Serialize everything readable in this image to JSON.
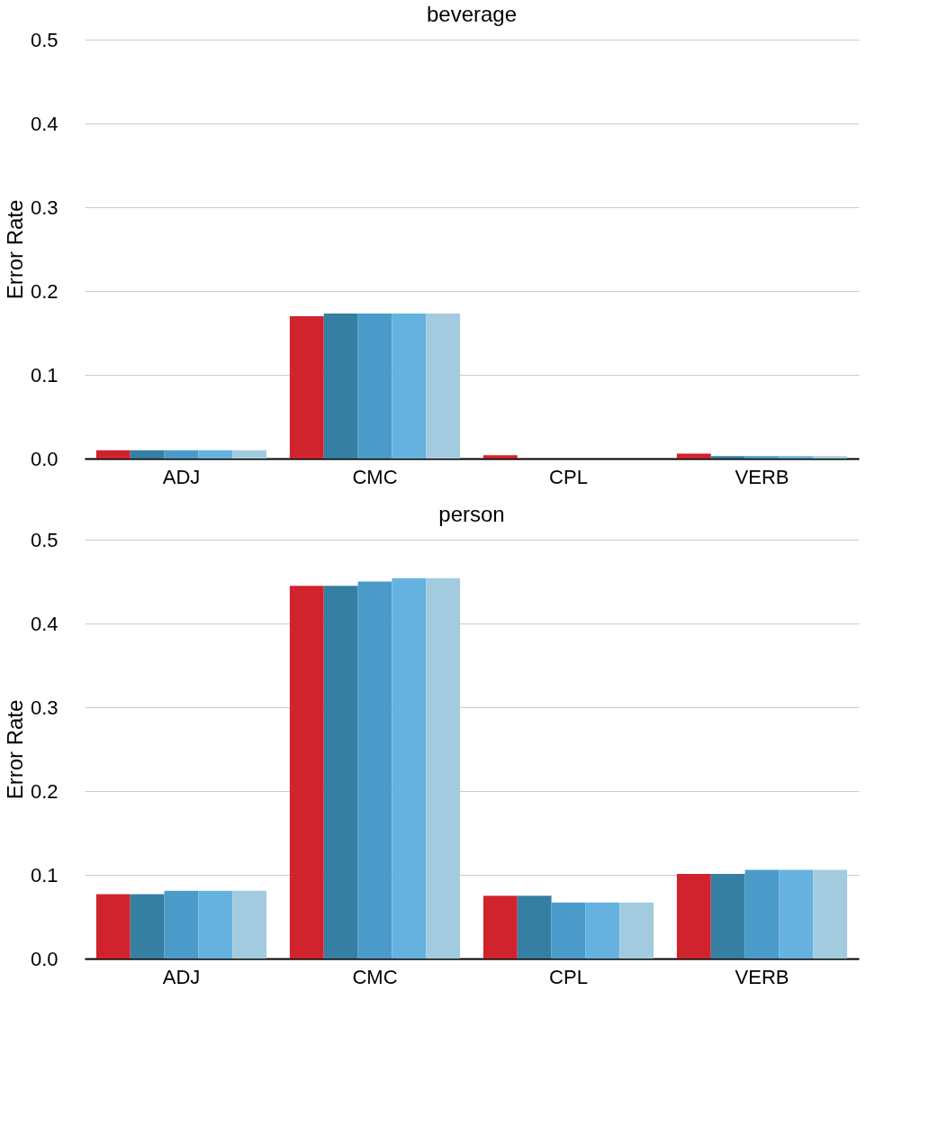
{
  "chart_data": [
    {
      "type": "bar",
      "title": "beverage",
      "ylabel": "Error Rate",
      "categories": [
        "ADJ",
        "CMC",
        "CPL",
        "VERB"
      ],
      "series": [
        {
          "color": "#d0232e",
          "values": [
            0.01,
            0.17,
            0.004,
            0.006
          ]
        },
        {
          "color": "#357fa3",
          "values": [
            0.01,
            0.173,
            0,
            0.003
          ]
        },
        {
          "color": "#4a9bca",
          "values": [
            0.01,
            0.173,
            0,
            0.003
          ]
        },
        {
          "color": "#65b2e0",
          "values": [
            0.01,
            0.173,
            0,
            0.003
          ]
        },
        {
          "color": "#a3cbe0",
          "values": [
            0.01,
            0.173,
            0,
            0.003
          ]
        }
      ],
      "ylim": [
        0,
        0.5
      ],
      "yticks": [
        {
          "value": 0,
          "label": "0.0"
        },
        0.1,
        0.2,
        0.3,
        0.4,
        0.5
      ],
      "grid": "y",
      "legend": false
    },
    {
      "type": "bar",
      "title": "person",
      "ylabel": "Error Rate",
      "categories": [
        "ADJ",
        "CMC",
        "CPL",
        "VERB"
      ],
      "series": [
        {
          "color": "#d0232e",
          "values": [
            0.077,
            0.445,
            0.075,
            0.101
          ]
        },
        {
          "color": "#357fa3",
          "values": [
            0.077,
            0.445,
            0.075,
            0.101
          ]
        },
        {
          "color": "#4a9bca",
          "values": [
            0.081,
            0.45,
            0.067,
            0.106
          ]
        },
        {
          "color": "#65b2e0",
          "values": [
            0.081,
            0.454,
            0.067,
            0.106
          ]
        },
        {
          "color": "#a3cbe0",
          "values": [
            0.081,
            0.454,
            0.067,
            0.106
          ]
        }
      ],
      "ylim": [
        0,
        0.5
      ],
      "yticks": [
        {
          "value": 0,
          "label": "0.0"
        },
        0.1,
        0.2,
        0.3,
        0.4,
        0.5
      ],
      "grid": "y",
      "legend": false
    }
  ]
}
